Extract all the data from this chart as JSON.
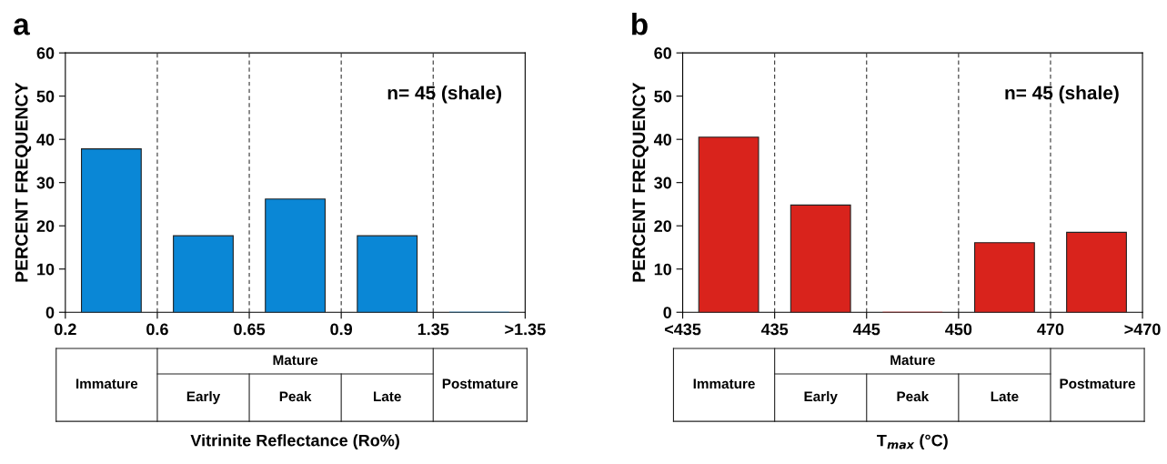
{
  "chart_data": [
    {
      "type": "bar",
      "title": "a",
      "ylabel": "PERCENT FREQUENCY",
      "xlabel": "Vitrinite Reflectance (Ro%)",
      "categories": [
        "0.2",
        null,
        "0.6",
        null,
        "0.65",
        null,
        "0.9",
        null,
        "1.35",
        null,
        ">1.35"
      ],
      "values": [
        null,
        37.8,
        null,
        17.7,
        null,
        26.2,
        null,
        17.7,
        null,
        0,
        null
      ],
      "color": "#0a87d6",
      "ylim": [
        0,
        60
      ],
      "yticks": [
        0,
        10,
        20,
        30,
        40,
        50,
        60
      ],
      "grid": false,
      "ref_lines": [
        {
          "axis": "x",
          "value": "0.6",
          "line_style": "dashed",
          "color": "#333333"
        },
        {
          "axis": "x",
          "value": "0.65",
          "line_style": "dashed",
          "color": "#333333"
        },
        {
          "axis": "x",
          "value": "0.9",
          "line_style": "dashed",
          "color": "#333333"
        },
        {
          "axis": "x",
          "value": "1.35",
          "line_style": "dashed",
          "color": "#333333"
        }
      ],
      "annotations": [
        "n= 45 (shale)",
        "Immature",
        "Mature",
        "Early",
        "Peak",
        "Late",
        "Postmature"
      ]
    },
    {
      "type": "bar",
      "title": "b",
      "ylabel": "PERCENT FREQUENCY",
      "xlabel": "T$_{max}$ (°C)",
      "categories": [
        "<435",
        null,
        "435",
        null,
        "445",
        null,
        "450",
        null,
        "470",
        null,
        ">470"
      ],
      "values": [
        null,
        40.5,
        null,
        24.8,
        null,
        0,
        null,
        16.1,
        null,
        18.5,
        null
      ],
      "color": "#d9231c",
      "ylim": [
        0,
        60
      ],
      "yticks": [
        0,
        10,
        20,
        30,
        40,
        50,
        60
      ],
      "grid": false,
      "ref_lines": [
        {
          "axis": "x",
          "value": "435",
          "line_style": "dashed",
          "color": "#333333"
        },
        {
          "axis": "x",
          "value": "445",
          "line_style": "dashed",
          "color": "#333333"
        },
        {
          "axis": "x",
          "value": "450",
          "line_style": "dashed",
          "color": "#333333"
        },
        {
          "axis": "x",
          "value": "470",
          "line_style": "dashed",
          "color": "#333333"
        }
      ],
      "annotations": [
        "n= 45 (shale)",
        "Immature",
        "Mature",
        "Early",
        "Peak",
        "Late",
        "Postmature"
      ]
    }
  ]
}
